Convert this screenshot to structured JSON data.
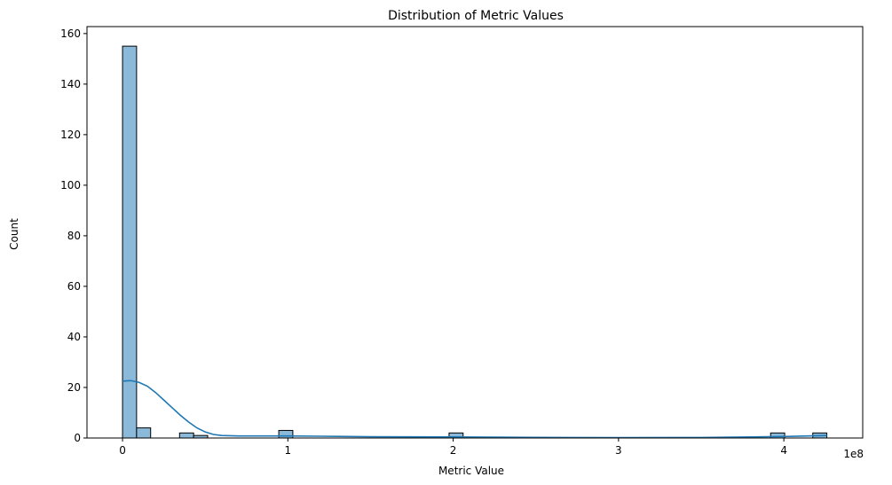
{
  "chart_data": {
    "type": "bar",
    "title": "Distribution of Metric Values",
    "xlabel": "Metric Value",
    "ylabel": "Count",
    "x_offset_label": "1e8",
    "xlim": [
      -0.215,
      4.477
    ],
    "ylim": [
      0,
      162.75
    ],
    "x_ticks": [
      {
        "value": 0,
        "label": "0"
      },
      {
        "value": 1,
        "label": "1"
      },
      {
        "value": 2,
        "label": "2"
      },
      {
        "value": 3,
        "label": "3"
      },
      {
        "value": 4,
        "label": "4"
      }
    ],
    "y_ticks": [
      {
        "value": 0,
        "label": "0"
      },
      {
        "value": 20,
        "label": "20"
      },
      {
        "value": 40,
        "label": "40"
      },
      {
        "value": 60,
        "label": "60"
      },
      {
        "value": 80,
        "label": "80"
      },
      {
        "value": 100,
        "label": "100"
      },
      {
        "value": 120,
        "label": "120"
      },
      {
        "value": 140,
        "label": "140"
      },
      {
        "value": 160,
        "label": "160"
      }
    ],
    "bar_fill": "#8ab9da",
    "bar_edge": "#000000",
    "kde_color": "#1f77b4",
    "bins": [
      {
        "x0": 0.0,
        "x1": 0.085,
        "count": 155
      },
      {
        "x0": 0.085,
        "x1": 0.17,
        "count": 4
      },
      {
        "x0": 0.345,
        "x1": 0.43,
        "count": 2
      },
      {
        "x0": 0.43,
        "x1": 0.515,
        "count": 1
      },
      {
        "x0": 0.945,
        "x1": 1.03,
        "count": 3
      },
      {
        "x0": 1.975,
        "x1": 2.06,
        "count": 2
      },
      {
        "x0": 3.92,
        "x1": 4.005,
        "count": 2
      },
      {
        "x0": 4.175,
        "x1": 4.26,
        "count": 2
      }
    ],
    "kde_curve": {
      "x": [
        0.0,
        0.05,
        0.1,
        0.15,
        0.2,
        0.25,
        0.3,
        0.35,
        0.4,
        0.45,
        0.5,
        0.55,
        0.6,
        0.7,
        0.8,
        0.9,
        1.0,
        1.2,
        1.5,
        2.0,
        2.5,
        3.0,
        3.5,
        3.8,
        4.0,
        4.2,
        4.26
      ],
      "y": [
        22.5,
        22.7,
        22.0,
        20.5,
        18.0,
        15.0,
        12.0,
        9.0,
        6.3,
        4.0,
        2.4,
        1.4,
        1.0,
        0.8,
        0.8,
        0.8,
        0.8,
        0.7,
        0.5,
        0.4,
        0.25,
        0.15,
        0.2,
        0.4,
        0.6,
        0.9,
        1.0
      ]
    }
  }
}
